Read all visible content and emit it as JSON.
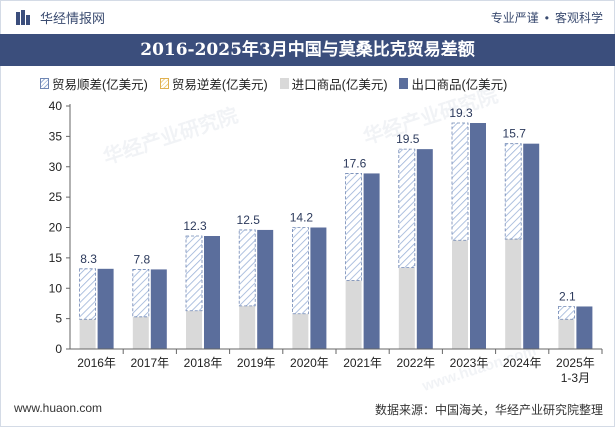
{
  "header": {
    "brand": "华经情报网",
    "slogan_left": "专业严谨",
    "slogan_right": "客观科学"
  },
  "title": "2016-2025年3月中国与莫桑比克贸易差额",
  "legend": [
    {
      "label": "贸易顺差(亿美元)",
      "style": "hatch-blue"
    },
    {
      "label": "贸易逆差(亿美元)",
      "style": "hatch-yellow"
    },
    {
      "label": "进口商品(亿美元)",
      "style": "gray"
    },
    {
      "label": "出口商品(亿美元)",
      "style": "blue"
    }
  ],
  "watermark": {
    "cn": "华经产业研究院",
    "url": "www.huaon.com"
  },
  "footer": {
    "site": "www.huaon.com",
    "source": "数据来源：中国海关，华经产业研究院整理"
  },
  "colors": {
    "header_bg": "#3b4e7c",
    "export_bar": "#5b6e9c",
    "import_bar": "#d9d9d9",
    "surplus_hatch": "#9bb2d8",
    "deficit_hatch": "#f0d28a"
  },
  "chart_data": {
    "type": "bar",
    "categories": [
      "2016年",
      "2017年",
      "2018年",
      "2019年",
      "2020年",
      "2021年",
      "2022年",
      "2023年",
      "2024年",
      "2025年\n1-3月"
    ],
    "ylim": [
      0,
      40
    ],
    "yticks": [
      0,
      5,
      10,
      15,
      20,
      25,
      30,
      35,
      40
    ],
    "series": [
      {
        "name": "贸易顺差(亿美元)",
        "values": [
          8.3,
          7.8,
          12.3,
          12.5,
          14.2,
          17.6,
          19.5,
          19.3,
          15.7,
          2.1
        ]
      },
      {
        "name": "贸易逆差(亿美元)",
        "values": [
          0,
          0,
          0,
          0,
          0,
          0,
          0,
          0,
          0,
          0
        ]
      },
      {
        "name": "进口商品(亿美元)",
        "values": [
          4.9,
          5.3,
          6.3,
          7.1,
          5.8,
          11.3,
          13.4,
          17.9,
          18.1,
          4.9
        ]
      },
      {
        "name": "出口商品(亿美元)",
        "values": [
          13.2,
          13.1,
          18.6,
          19.6,
          20.0,
          28.9,
          32.9,
          37.2,
          33.8,
          7.0
        ]
      }
    ],
    "data_labels": [
      "8.3",
      "7.8",
      "12.3",
      "12.5",
      "14.2",
      "17.6",
      "19.5",
      "19.3",
      "15.7",
      "2.1"
    ]
  }
}
